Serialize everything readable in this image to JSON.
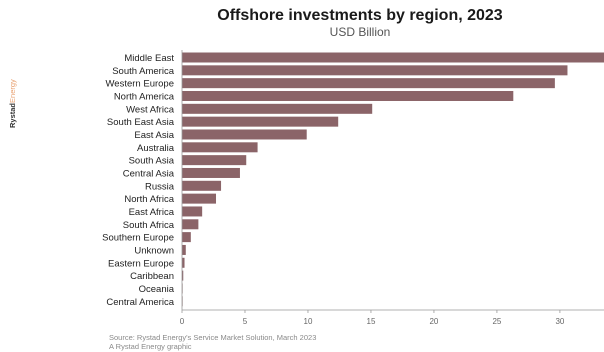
{
  "brand": {
    "name_part1": "Rystad",
    "name_part2": "Energy"
  },
  "colors": {
    "bar": "#8b6468",
    "axis": "#999999",
    "brand_dark": "#333333",
    "brand_accent": "#e8a070"
  },
  "chart_data": {
    "type": "bar",
    "orientation": "horizontal",
    "title": "Offshore investments by region, 2023",
    "subtitle": "USD Billion",
    "categories": [
      "Middle East",
      "South America",
      "Western Europe",
      "North America",
      "West Africa",
      "South East Asia",
      "East Asia",
      "Australia",
      "South Asia",
      "Central Asia",
      "Russia",
      "North Africa",
      "East Africa",
      "South Africa",
      "Southern Europe",
      "Unknown",
      "Eastern Europe",
      "Caribbean",
      "Oceania",
      "Central America"
    ],
    "values": [
      33.5,
      30.6,
      29.6,
      26.3,
      15.1,
      12.4,
      9.9,
      6.0,
      5.1,
      4.6,
      3.1,
      2.7,
      1.6,
      1.3,
      0.7,
      0.3,
      0.2,
      0.1,
      0.05,
      0.05
    ],
    "xticks": [
      0,
      5,
      10,
      15,
      20,
      25,
      30
    ],
    "xlim": [
      0,
      33.5
    ],
    "grid": false
  },
  "source": {
    "line1": "Source: Rystad Energy's Service Market Solution, March 2023",
    "line2": "A Rystad Energy graphic"
  }
}
